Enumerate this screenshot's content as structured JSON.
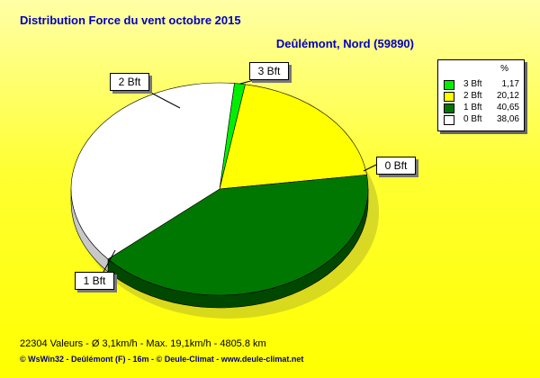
{
  "chart_data": {
    "type": "pie",
    "title": "Distribution Force du vent  octobre 2015",
    "subtitle": "Deûlémont, Nord (59890)",
    "legend_header": "%",
    "legend_position": "top-right",
    "slices": [
      {
        "label": "3 Bft",
        "value": 1.17,
        "value_text": "1,17",
        "color": "#00ee00"
      },
      {
        "label": "2 Bft",
        "value": 20.12,
        "value_text": "20,12",
        "color": "#ffff00"
      },
      {
        "label": "1 Bft",
        "value": 40.65,
        "value_text": "40,65",
        "color": "#007700"
      },
      {
        "label": "0 Bft",
        "value": 38.06,
        "value_text": "38,06",
        "color": "#ffffff"
      }
    ]
  },
  "footer": {
    "stats": "22304 Valeurs   -   Ø 3,1km/h  -  Max. 19,1km/h   -   4805.8 km",
    "credit": "© WsWin32  -  Deûlémont (F) - 16m  -  © Deule-Climat - www.deule-climat.net"
  }
}
